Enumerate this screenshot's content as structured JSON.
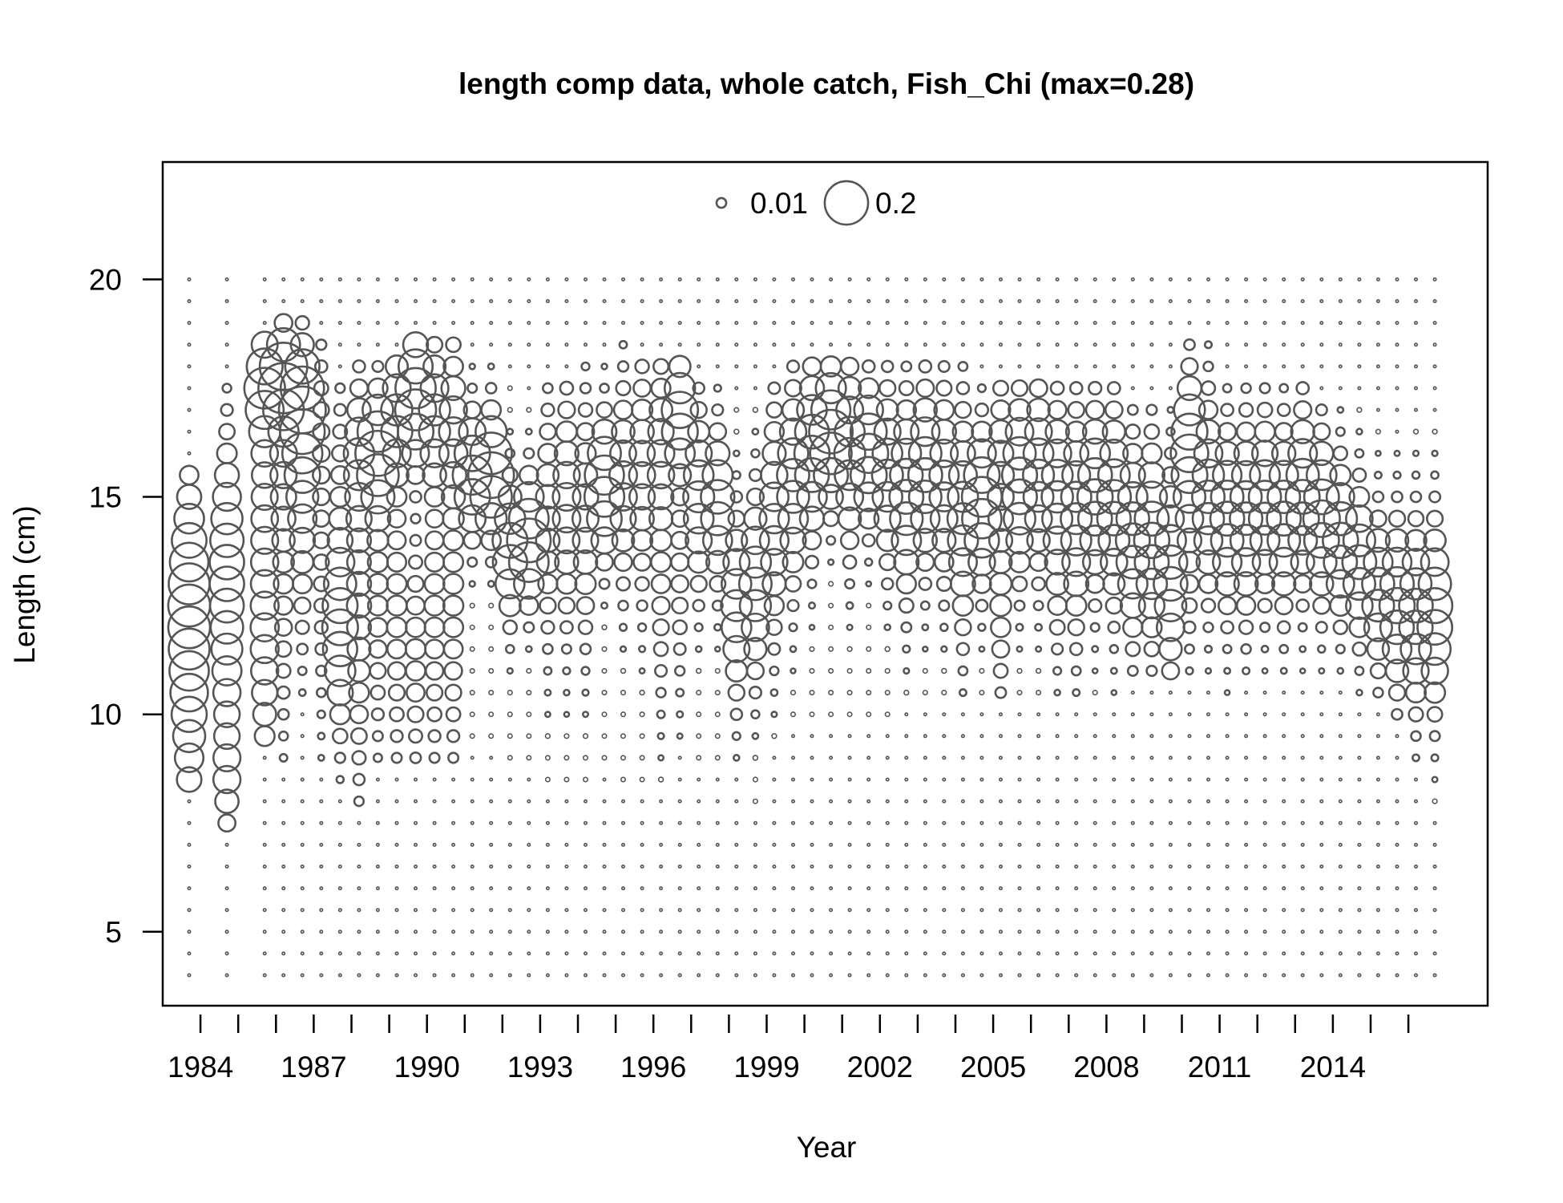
{
  "chart_data": {
    "type": "bubble",
    "title": "length comp data, whole catch, Fish_Chi (max=0.28)",
    "xlabel": "Year",
    "ylabel": "Length (cm)",
    "x_ticks": [
      1984,
      1987,
      1990,
      1993,
      1996,
      1999,
      2002,
      2005,
      2008,
      2011,
      2014
    ],
    "y_ticks": [
      5,
      10,
      15,
      20
    ],
    "xlim": [
      1983.0,
      2018.1
    ],
    "ylim": [
      3.3,
      22.7
    ],
    "length_bins": {
      "min": 4,
      "max": 20,
      "step": 0.5
    },
    "max_proportion": 0.28,
    "legend": {
      "placement": "top",
      "entries": [
        {
          "label": "0.01",
          "value": 0.01
        },
        {
          "label": "0.2",
          "value": 0.2
        }
      ]
    },
    "colors": {
      "circle": "#555555",
      "axis": "#000000"
    },
    "years": [
      {
        "year": 1983.7,
        "peaks": [
          [
            10.7,
            0.13,
            1.8
          ],
          [
            13.2,
            0.12,
            1.4
          ]
        ],
        "lo": 8.5,
        "hi": 15.5
      },
      {
        "year": 1984.7,
        "peaks": [
          [
            11.5,
            0.08,
            2.0
          ],
          [
            14.0,
            0.08,
            1.5
          ],
          [
            8.5,
            0.05,
            0.7
          ]
        ],
        "lo": 7.5,
        "hi": 17.5
      },
      {
        "year": 1985.7,
        "peaks": [
          [
            17.5,
            0.14,
            0.7
          ],
          [
            14.5,
            0.07,
            2.5
          ],
          [
            11.0,
            0.05,
            1.5
          ]
        ],
        "lo": 9.5,
        "hi": 18.5
      },
      {
        "year": 1986.2,
        "peaks": [
          [
            17.7,
            0.24,
            0.6
          ],
          [
            16.0,
            0.06,
            1.5
          ],
          [
            13.0,
            0.03,
            2.0
          ]
        ],
        "lo": 9.0,
        "hi": 19.0
      },
      {
        "year": 1986.7,
        "peaks": [
          [
            17.2,
            0.16,
            0.8
          ],
          [
            16.0,
            0.1,
            1.2
          ],
          [
            14.0,
            0.04,
            1.5
          ]
        ],
        "lo": 10.5,
        "hi": 19.0
      },
      {
        "year": 1987.2,
        "peaks": [
          [
            16.5,
            0.02,
            1.5
          ],
          [
            13.5,
            0.02,
            2.0
          ]
        ],
        "lo": 9.0,
        "hi": 18.5
      },
      {
        "year": 1987.7,
        "peaks": [
          [
            12.0,
            0.13,
            1.3
          ],
          [
            15.0,
            0.03,
            1.5
          ]
        ],
        "lo": 8.5,
        "hi": 17.5
      },
      {
        "year": 1988.2,
        "peaks": [
          [
            16.0,
            0.08,
            1.0
          ],
          [
            12.5,
            0.06,
            2.2
          ]
        ],
        "lo": 8.0,
        "hi": 18.0
      },
      {
        "year": 1988.7,
        "peaks": [
          [
            16.0,
            0.2,
            0.8
          ],
          [
            13.0,
            0.04,
            2.0
          ]
        ],
        "lo": 9.0,
        "hi": 18.0
      },
      {
        "year": 1989.2,
        "peaks": [
          [
            16.8,
            0.1,
            1.0
          ],
          [
            12.5,
            0.04,
            2.0
          ]
        ],
        "lo": 9.0,
        "hi": 18.0
      },
      {
        "year": 1989.7,
        "peaks": [
          [
            17.2,
            0.18,
            0.9
          ],
          [
            11.5,
            0.04,
            1.5
          ]
        ],
        "lo": 9.0,
        "hi": 18.5
      },
      {
        "year": 1990.2,
        "peaks": [
          [
            16.8,
            0.1,
            1.0
          ],
          [
            12.5,
            0.04,
            2.0
          ]
        ],
        "lo": 9.0,
        "hi": 18.5
      },
      {
        "year": 1990.7,
        "peaks": [
          [
            16.5,
            0.08,
            1.2
          ],
          [
            12.5,
            0.04,
            2.0
          ]
        ],
        "lo": 9.0,
        "hi": 18.5
      },
      {
        "year": 1991.2,
        "peaks": [
          [
            15.5,
            0.16,
            0.8
          ]
        ],
        "lo": 9.5,
        "hi": 18.0
      },
      {
        "year": 1991.7,
        "peaks": [
          [
            15.5,
            0.22,
            0.8
          ]
        ],
        "lo": 9.5,
        "hi": 18.0
      },
      {
        "year": 1992.2,
        "peaks": [
          [
            13.8,
            0.13,
            0.9
          ]
        ],
        "lo": 9.0,
        "hi": 17.5
      },
      {
        "year": 1992.7,
        "peaks": [
          [
            14.0,
            0.2,
            0.8
          ]
        ],
        "lo": 9.0,
        "hi": 17.0
      },
      {
        "year": 1993.2,
        "peaks": [
          [
            14.5,
            0.06,
            1.5
          ]
        ],
        "lo": 8.5,
        "hi": 17.5
      },
      {
        "year": 1993.7,
        "peaks": [
          [
            14.8,
            0.08,
            1.5
          ]
        ],
        "lo": 8.5,
        "hi": 17.5
      },
      {
        "year": 1994.2,
        "peaks": [
          [
            14.5,
            0.07,
            1.5
          ]
        ],
        "lo": 8.5,
        "hi": 18.0
      },
      {
        "year": 1994.7,
        "peaks": [
          [
            15.2,
            0.17,
            0.9
          ]
        ],
        "lo": 9.0,
        "hi": 18.0
      },
      {
        "year": 1995.2,
        "peaks": [
          [
            15.3,
            0.08,
            1.3
          ]
        ],
        "lo": 8.5,
        "hi": 18.5
      },
      {
        "year": 1995.7,
        "peaks": [
          [
            15.5,
            0.07,
            1.5
          ]
        ],
        "lo": 8.5,
        "hi": 18.0
      },
      {
        "year": 1996.2,
        "peaks": [
          [
            16.0,
            0.07,
            1.3
          ],
          [
            13.0,
            0.03,
            1.5
          ]
        ],
        "lo": 8.5,
        "hi": 18.0
      },
      {
        "year": 1996.7,
        "peaks": [
          [
            16.8,
            0.14,
            0.8
          ],
          [
            13.5,
            0.03,
            1.5
          ]
        ],
        "lo": 9.5,
        "hi": 18.0
      },
      {
        "year": 1997.2,
        "peaks": [
          [
            15.0,
            0.1,
            1.2
          ]
        ],
        "lo": 9.0,
        "hi": 17.5
      },
      {
        "year": 1997.7,
        "peaks": [
          [
            14.8,
            0.12,
            1.0
          ]
        ],
        "lo": 9.0,
        "hi": 17.5
      },
      {
        "year": 1998.2,
        "peaks": [
          [
            12.5,
            0.1,
            1.2
          ]
        ],
        "lo": 9.0,
        "hi": 17.0
      },
      {
        "year": 1998.7,
        "peaks": [
          [
            13.0,
            0.11,
            1.2
          ]
        ],
        "lo": 8.0,
        "hi": 17.0
      },
      {
        "year": 1999.2,
        "peaks": [
          [
            14.5,
            0.09,
            1.5
          ]
        ],
        "lo": 9.5,
        "hi": 17.5
      },
      {
        "year": 1999.7,
        "peaks": [
          [
            15.3,
            0.11,
            1.3
          ]
        ],
        "lo": 10.0,
        "hi": 18.0
      },
      {
        "year": 2000.2,
        "peaks": [
          [
            16.0,
            0.13,
            1.2
          ]
        ],
        "lo": 10.0,
        "hi": 18.0
      },
      {
        "year": 2000.7,
        "peaks": [
          [
            16.4,
            0.2,
            0.9
          ]
        ],
        "lo": 10.0,
        "hi": 18.0
      },
      {
        "year": 2001.2,
        "peaks": [
          [
            16.0,
            0.1,
            1.3
          ]
        ],
        "lo": 10.0,
        "hi": 18.0
      },
      {
        "year": 2001.7,
        "peaks": [
          [
            16.0,
            0.16,
            0.9
          ]
        ],
        "lo": 10.0,
        "hi": 18.0
      },
      {
        "year": 2002.2,
        "peaks": [
          [
            15.5,
            0.1,
            1.2
          ]
        ],
        "lo": 10.0,
        "hi": 18.0
      },
      {
        "year": 2002.7,
        "peaks": [
          [
            15.0,
            0.12,
            1.3
          ]
        ],
        "lo": 10.5,
        "hi": 18.0
      },
      {
        "year": 2003.2,
        "peaks": [
          [
            15.5,
            0.12,
            1.2
          ]
        ],
        "lo": 10.5,
        "hi": 18.0
      },
      {
        "year": 2003.7,
        "peaks": [
          [
            15.3,
            0.09,
            1.3
          ]
        ],
        "lo": 10.5,
        "hi": 18.0
      },
      {
        "year": 2004.2,
        "peaks": [
          [
            14.5,
            0.1,
            1.5
          ]
        ],
        "lo": 10.5,
        "hi": 18.0
      },
      {
        "year": 2004.7,
        "peaks": [
          [
            14.8,
            0.17,
            1.0
          ]
        ],
        "lo": 10.5,
        "hi": 17.5
      },
      {
        "year": 2005.2,
        "peaks": [
          [
            15.5,
            0.07,
            1.3
          ],
          [
            12.5,
            0.04,
            1.2
          ]
        ],
        "lo": 10.5,
        "hi": 17.5
      },
      {
        "year": 2005.7,
        "peaks": [
          [
            15.3,
            0.13,
            1.2
          ]
        ],
        "lo": 10.5,
        "hi": 17.5
      },
      {
        "year": 2006.2,
        "peaks": [
          [
            15.5,
            0.1,
            1.3
          ]
        ],
        "lo": 10.5,
        "hi": 17.5
      },
      {
        "year": 2006.7,
        "peaks": [
          [
            15.2,
            0.1,
            1.2
          ],
          [
            13.0,
            0.03,
            1.0
          ]
        ],
        "lo": 10.5,
        "hi": 17.5
      },
      {
        "year": 2007.2,
        "peaks": [
          [
            14.5,
            0.1,
            1.5
          ]
        ],
        "lo": 10.5,
        "hi": 17.5
      },
      {
        "year": 2007.7,
        "peaks": [
          [
            15.0,
            0.13,
            1.2
          ]
        ],
        "lo": 10.5,
        "hi": 17.5
      },
      {
        "year": 2008.2,
        "peaks": [
          [
            14.8,
            0.12,
            1.3
          ]
        ],
        "lo": 10.5,
        "hi": 17.5
      },
      {
        "year": 2008.7,
        "peaks": [
          [
            14.0,
            0.12,
            1.3
          ]
        ],
        "lo": 11.0,
        "hi": 17.0
      },
      {
        "year": 2009.2,
        "peaks": [
          [
            14.0,
            0.13,
            1.3
          ]
        ],
        "lo": 11.0,
        "hi": 17.0
      },
      {
        "year": 2009.7,
        "peaks": [
          [
            13.2,
            0.12,
            1.3
          ]
        ],
        "lo": 11.0,
        "hi": 17.0
      },
      {
        "year": 2010.2,
        "peaks": [
          [
            16.2,
            0.12,
            1.0
          ],
          [
            14.5,
            0.05,
            1.5
          ]
        ],
        "lo": 11.0,
        "hi": 18.5
      },
      {
        "year": 2010.7,
        "peaks": [
          [
            15.0,
            0.11,
            1.3
          ]
        ],
        "lo": 11.0,
        "hi": 18.5
      },
      {
        "year": 2011.2,
        "peaks": [
          [
            14.5,
            0.12,
            1.2
          ]
        ],
        "lo": 10.5,
        "hi": 17.5
      },
      {
        "year": 2011.7,
        "peaks": [
          [
            14.5,
            0.11,
            1.3
          ]
        ],
        "lo": 11.0,
        "hi": 17.5
      },
      {
        "year": 2012.2,
        "peaks": [
          [
            14.8,
            0.11,
            1.2
          ]
        ],
        "lo": 11.0,
        "hi": 17.5
      },
      {
        "year": 2012.7,
        "peaks": [
          [
            14.5,
            0.12,
            1.2
          ]
        ],
        "lo": 11.0,
        "hi": 17.5
      },
      {
        "year": 2013.2,
        "peaks": [
          [
            15.0,
            0.12,
            1.2
          ]
        ],
        "lo": 11.0,
        "hi": 17.5
      },
      {
        "year": 2013.7,
        "peaks": [
          [
            14.5,
            0.14,
            1.1
          ]
        ],
        "lo": 11.0,
        "hi": 17.0
      },
      {
        "year": 2014.2,
        "peaks": [
          [
            14.0,
            0.13,
            1.0
          ]
        ],
        "lo": 11.0,
        "hi": 17.0
      },
      {
        "year": 2014.7,
        "peaks": [
          [
            13.5,
            0.12,
            1.0
          ]
        ],
        "lo": 10.5,
        "hi": 17.0
      },
      {
        "year": 2015.2,
        "peaks": [
          [
            12.8,
            0.11,
            1.0
          ]
        ],
        "lo": 10.5,
        "hi": 16.5
      },
      {
        "year": 2015.7,
        "peaks": [
          [
            12.5,
            0.13,
            1.1
          ]
        ],
        "lo": 10.0,
        "hi": 16.0
      },
      {
        "year": 2016.2,
        "peaks": [
          [
            12.3,
            0.12,
            1.2
          ]
        ],
        "lo": 9.0,
        "hi": 16.5
      },
      {
        "year": 2016.7,
        "peaks": [
          [
            12.3,
            0.13,
            1.2
          ]
        ],
        "lo": 8.0,
        "hi": 16.5
      }
    ]
  }
}
